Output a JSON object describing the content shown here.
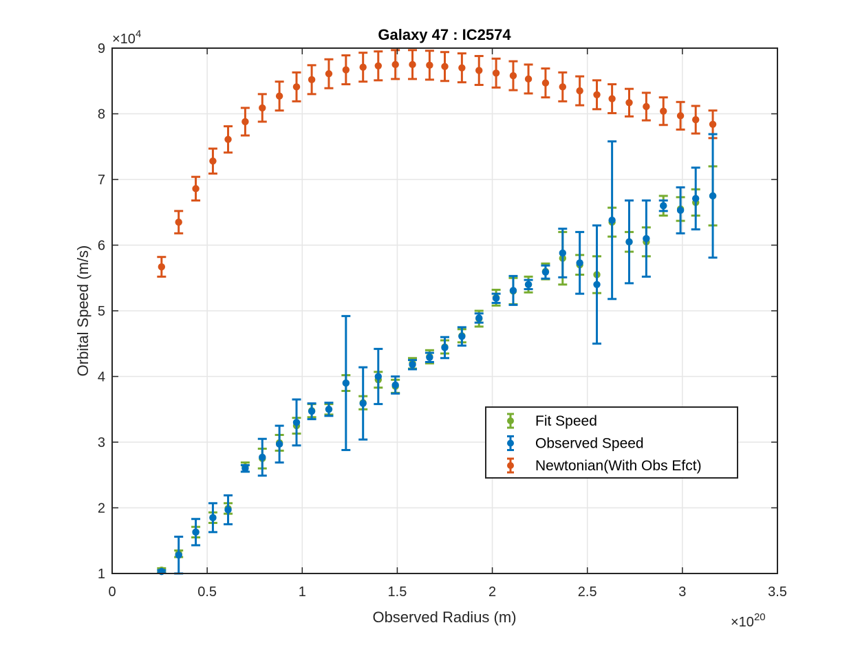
{
  "chart_data": {
    "type": "scatter",
    "title": "Galaxy 47 : IC2574",
    "xlabel": "Observed Radius (m)",
    "ylabel": "Orbital Speed (m/s)",
    "x_exponent_label": "×10",
    "x_exponent": "20",
    "y_exponent_label": "×10",
    "y_exponent": "4",
    "xlim": [
      0,
      3.5
    ],
    "ylim": [
      1,
      9
    ],
    "xticks": [
      0,
      0.5,
      1,
      1.5,
      2,
      2.5,
      3,
      3.5
    ],
    "xtick_labels": [
      "0",
      "0.5",
      "1",
      "1.5",
      "2",
      "2.5",
      "3",
      "3.5"
    ],
    "yticks": [
      1,
      2,
      3,
      4,
      5,
      6,
      7,
      8,
      9
    ],
    "ytick_labels": [
      "1",
      "2",
      "3",
      "4",
      "5",
      "6",
      "7",
      "8",
      "9"
    ],
    "grid": true,
    "legend_position": "lower-right",
    "x": [
      0.26,
      0.35,
      0.44,
      0.53,
      0.61,
      0.7,
      0.79,
      0.88,
      0.97,
      1.05,
      1.14,
      1.23,
      1.32,
      1.4,
      1.49,
      1.58,
      1.67,
      1.75,
      1.84,
      1.93,
      2.02,
      2.11,
      2.19,
      2.28,
      2.37,
      2.46,
      2.55,
      2.63,
      2.72,
      2.81,
      2.9,
      2.99,
      3.07,
      3.16
    ],
    "series": [
      {
        "name": "Fit Speed",
        "color": "#77AC30",
        "y": [
          1.05,
          1.3,
          1.63,
          1.85,
          1.99,
          2.62,
          2.75,
          2.99,
          3.25,
          3.48,
          3.5,
          3.9,
          3.6,
          3.95,
          3.85,
          4.2,
          4.3,
          4.45,
          4.62,
          4.88,
          5.2,
          5.3,
          5.4,
          5.6,
          5.8,
          5.7,
          5.55,
          6.35,
          6.05,
          6.05,
          6.6,
          6.55,
          6.65,
          6.75
        ],
        "err": [
          0.03,
          0.05,
          0.08,
          0.08,
          0.08,
          0.07,
          0.15,
          0.12,
          0.12,
          0.1,
          0.08,
          0.12,
          0.1,
          0.12,
          0.1,
          0.08,
          0.1,
          0.1,
          0.1,
          0.12,
          0.12,
          0.2,
          0.12,
          0.12,
          0.4,
          0.15,
          0.28,
          0.22,
          0.15,
          0.22,
          0.15,
          0.18,
          0.2,
          0.45
        ]
      },
      {
        "name": "Observed Speed",
        "color": "#0072BD",
        "y": [
          1.03,
          1.28,
          1.63,
          1.85,
          1.97,
          2.6,
          2.77,
          2.97,
          3.3,
          3.47,
          3.5,
          3.9,
          3.59,
          4.0,
          3.87,
          4.18,
          4.29,
          4.44,
          4.61,
          4.89,
          5.19,
          5.31,
          5.4,
          5.59,
          5.88,
          5.73,
          5.4,
          6.38,
          6.05,
          6.1,
          6.6,
          6.53,
          6.71,
          6.75
        ],
        "err": [
          0.02,
          0.28,
          0.2,
          0.22,
          0.22,
          0.05,
          0.28,
          0.28,
          0.35,
          0.12,
          0.1,
          1.02,
          0.55,
          0.42,
          0.13,
          0.07,
          0.07,
          0.16,
          0.14,
          0.07,
          0.07,
          0.22,
          0.07,
          0.1,
          0.37,
          0.47,
          0.9,
          1.2,
          0.63,
          0.58,
          0.08,
          0.35,
          0.47,
          0.94
        ]
      },
      {
        "name": "Newtonian(With Obs Efct)",
        "color": "#D95319",
        "y": [
          5.67,
          6.35,
          6.86,
          7.28,
          7.61,
          7.88,
          8.09,
          8.27,
          8.41,
          8.52,
          8.61,
          8.67,
          8.71,
          8.73,
          8.75,
          8.75,
          8.74,
          8.72,
          8.7,
          8.66,
          8.62,
          8.58,
          8.53,
          8.47,
          8.41,
          8.35,
          8.29,
          8.23,
          8.17,
          8.11,
          8.04,
          7.97,
          7.91,
          7.84
        ],
        "err": [
          0.15,
          0.17,
          0.18,
          0.19,
          0.2,
          0.21,
          0.21,
          0.22,
          0.22,
          0.22,
          0.22,
          0.22,
          0.22,
          0.22,
          0.22,
          0.22,
          0.22,
          0.22,
          0.22,
          0.22,
          0.22,
          0.22,
          0.22,
          0.22,
          0.22,
          0.22,
          0.22,
          0.22,
          0.21,
          0.21,
          0.21,
          0.21,
          0.21,
          0.21
        ]
      }
    ]
  }
}
